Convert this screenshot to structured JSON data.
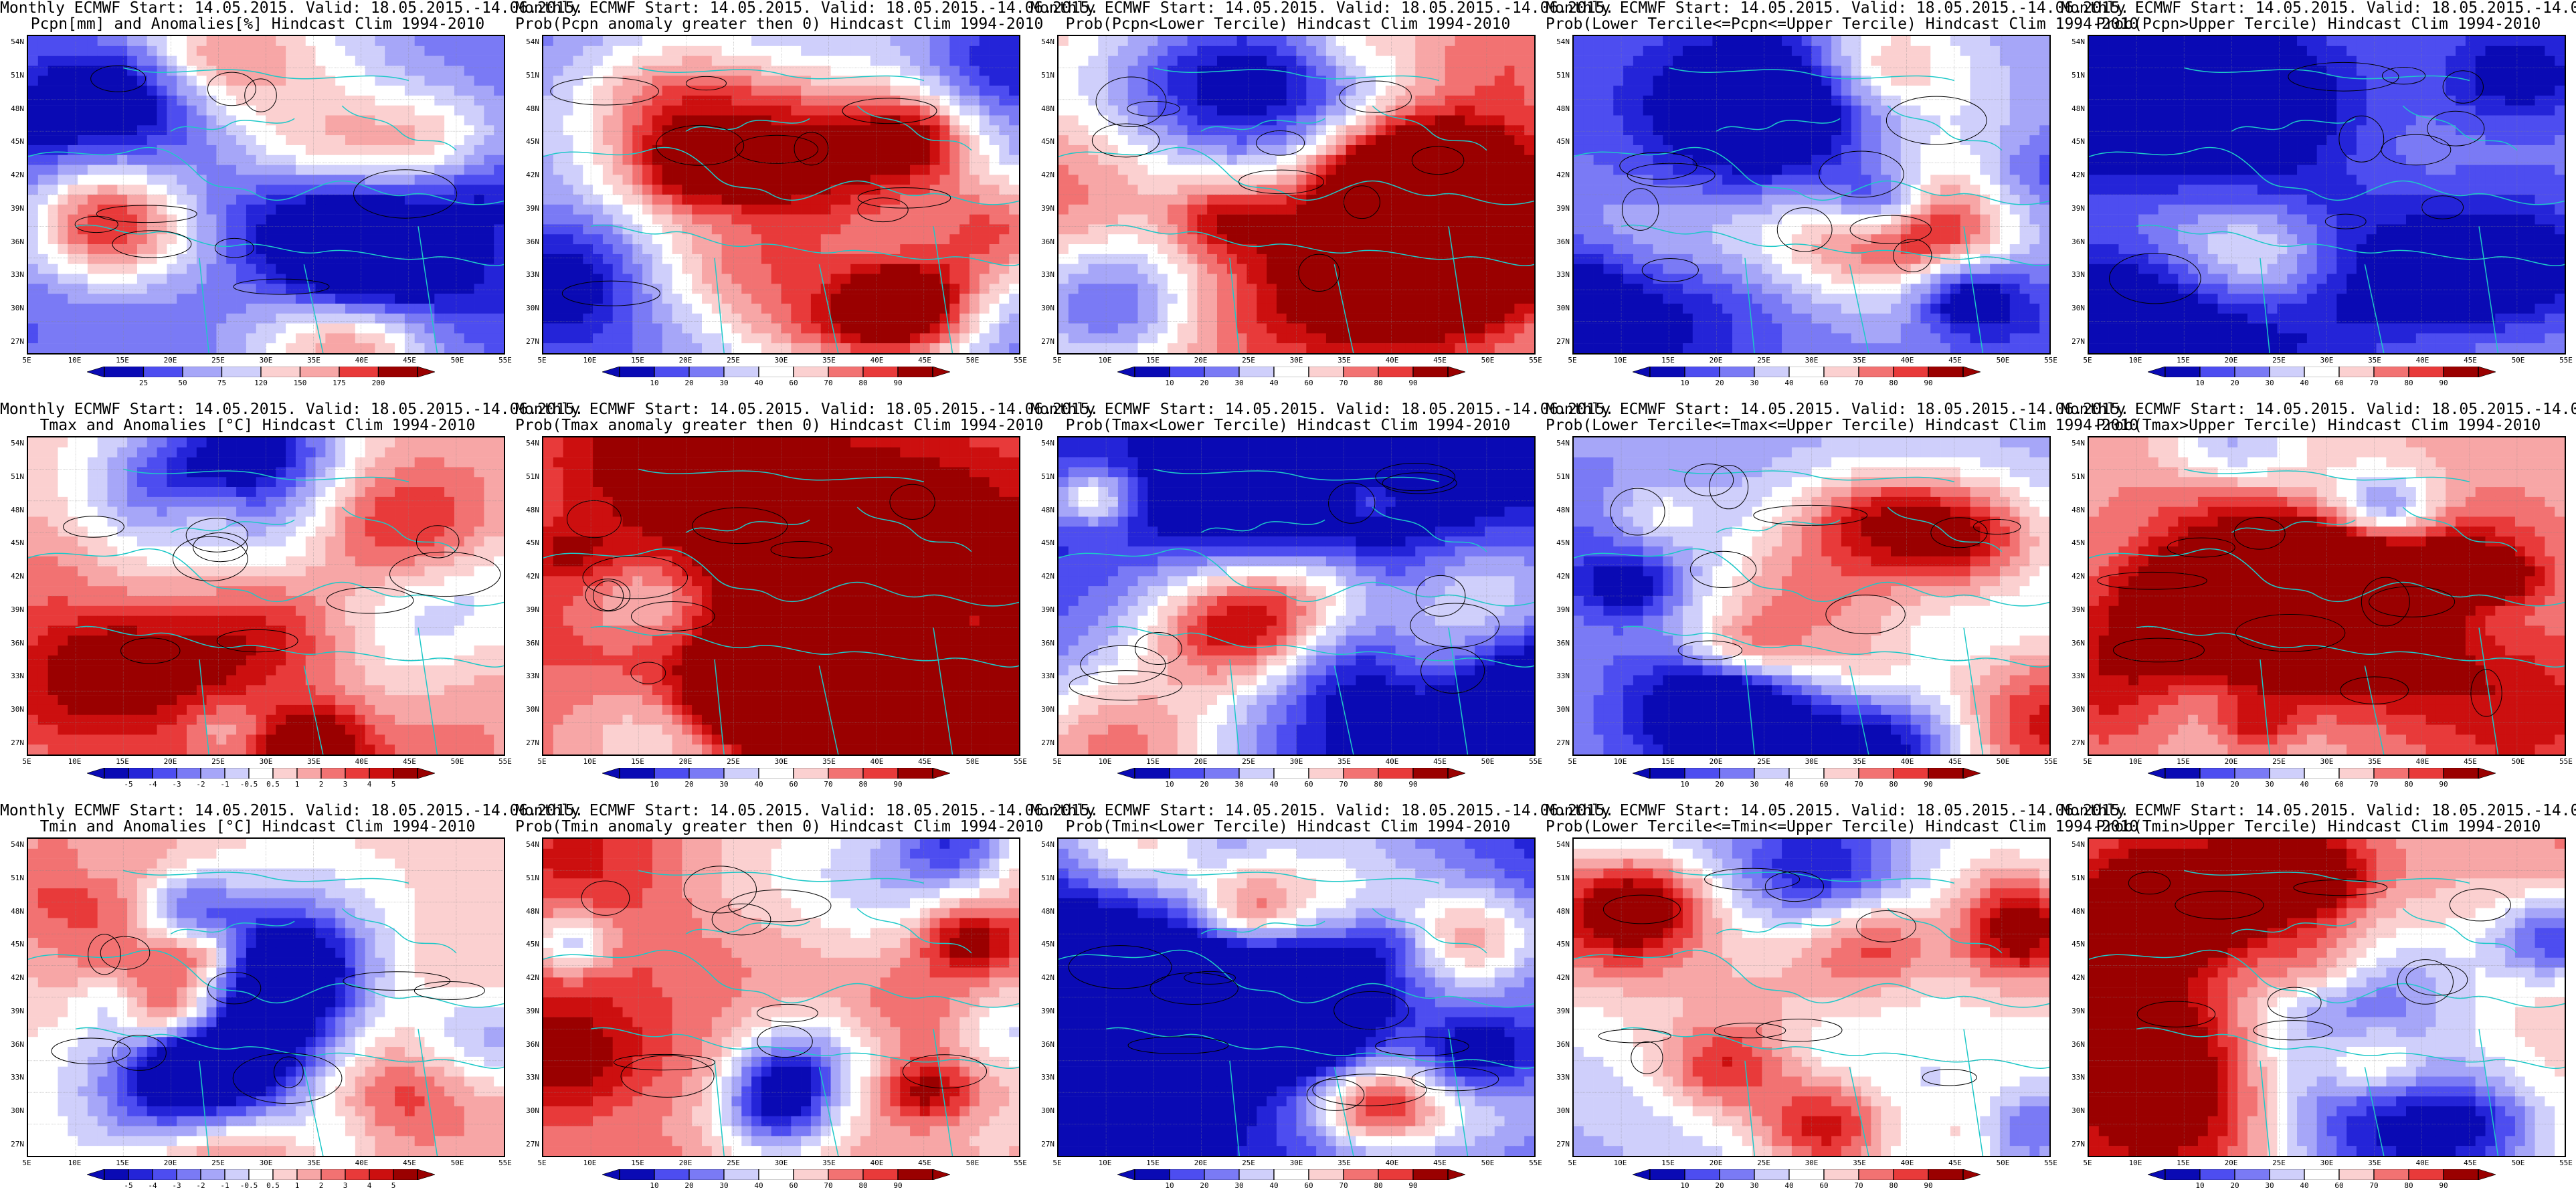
{
  "header_line": "Monthly ECMWF Start: 14.05.2015. Valid: 18.05.2015.-14.06.2015.",
  "lat_ticks": [
    "54N",
    "51N",
    "48N",
    "45N",
    "42N",
    "39N",
    "36N",
    "33N",
    "30N",
    "27N"
  ],
  "lon_ticks": [
    "5E",
    "10E",
    "15E",
    "20E",
    "25E",
    "30E",
    "35E",
    "40E",
    "45E",
    "50E",
    "55E"
  ],
  "colors": {
    "coast": "#1ec8c8",
    "contour": "#000000",
    "deep_blue": "#1010c8",
    "deep_red": "#b00000"
  },
  "panels": [
    {
      "id": "pcpn-anom",
      "title": "Pcpn[mm] and Anomalies[%] Hindcast Clim 1994-2010",
      "scheme": "blue-low",
      "cbar": [
        "25",
        "50",
        "75",
        "120",
        "150",
        "175",
        "200"
      ],
      "bias": -0.5
    },
    {
      "id": "pcpn-prob-gt0",
      "title": "Prob(Pcpn anomaly greater then 0) Hindcast Clim 1994-2010",
      "scheme": "prob",
      "cbar": [
        "10",
        "20",
        "30",
        "40",
        "60",
        "70",
        "80",
        "90"
      ],
      "bias": -0.55
    },
    {
      "id": "pcpn-prob-lower",
      "title": "Prob(Pcpn<Lower Tercile) Hindcast Clim 1994-2010",
      "scheme": "prob",
      "cbar": [
        "10",
        "20",
        "30",
        "40",
        "60",
        "70",
        "80",
        "90"
      ],
      "bias": 0.15
    },
    {
      "id": "pcpn-prob-mid",
      "title": "Prob(Lower Tercile<=Pcpn<=Upper Tercile) Hindcast Clim 1994-2010",
      "scheme": "prob",
      "cbar": [
        "10",
        "20",
        "30",
        "40",
        "60",
        "70",
        "80",
        "90"
      ],
      "bias": -0.5
    },
    {
      "id": "pcpn-prob-upper",
      "title": "Prob(Pcpn>Upper Tercile) Hindcast Clim 1994-2010",
      "scheme": "prob",
      "cbar": [
        "10",
        "20",
        "30",
        "40",
        "60",
        "70",
        "80",
        "90"
      ],
      "bias": -0.45
    },
    {
      "id": "tmax-anom",
      "title": "Tmax and Anomalies [°C] Hindcast Clim 1994-2010",
      "scheme": "anom",
      "cbar": [
        "-5",
        "-4",
        "-3",
        "-2",
        "-1",
        "-0.5",
        "0.5",
        "1",
        "2",
        "3",
        "4",
        "5"
      ],
      "bias": 0.2
    },
    {
      "id": "tmax-prob-gt0",
      "title": "Prob(Tmax anomaly greater then 0) Hindcast Clim 1994-2010",
      "scheme": "prob",
      "cbar": [
        "10",
        "20",
        "30",
        "40",
        "60",
        "70",
        "80",
        "90"
      ],
      "bias": 0.55
    },
    {
      "id": "tmax-prob-lower",
      "title": "Prob(Tmax<Lower Tercile) Hindcast Clim 1994-2010",
      "scheme": "prob",
      "cbar": [
        "10",
        "20",
        "30",
        "40",
        "60",
        "70",
        "80",
        "90"
      ],
      "bias": -0.75
    },
    {
      "id": "tmax-prob-mid",
      "title": "Prob(Lower Tercile<=Tmax<=Upper Tercile) Hindcast Clim 1994-2010",
      "scheme": "prob",
      "cbar": [
        "10",
        "20",
        "30",
        "40",
        "60",
        "70",
        "80",
        "90"
      ],
      "bias": -0.3
    },
    {
      "id": "tmax-prob-upper",
      "title": "Prob(Tmax>Upper Tercile) Hindcast Clim 1994-2010",
      "scheme": "prob",
      "cbar": [
        "10",
        "20",
        "30",
        "40",
        "60",
        "70",
        "80",
        "90"
      ],
      "bias": 0.3
    },
    {
      "id": "tmin-anom",
      "title": "Tmin and Anomalies [°C] Hindcast Clim 1994-2010",
      "scheme": "anom",
      "cbar": [
        "-5",
        "-4",
        "-3",
        "-2",
        "-1",
        "-0.5",
        "0.5",
        "1",
        "2",
        "3",
        "4",
        "5"
      ],
      "bias": 0.12
    },
    {
      "id": "tmin-prob-gt0",
      "title": "Prob(Tmin anomaly greater then 0) Hindcast Clim 1994-2010",
      "scheme": "prob",
      "cbar": [
        "10",
        "20",
        "30",
        "40",
        "60",
        "70",
        "80",
        "90"
      ],
      "bias": 0.5
    },
    {
      "id": "tmin-prob-lower",
      "title": "Prob(Tmin<Lower Tercile) Hindcast Clim 1994-2010",
      "scheme": "prob",
      "cbar": [
        "10",
        "20",
        "30",
        "40",
        "60",
        "70",
        "80",
        "90"
      ],
      "bias": -0.8
    },
    {
      "id": "tmin-prob-mid",
      "title": "Prob(Lower Tercile<=Tmin<=Upper Tercile) Hindcast Clim 1994-2010",
      "scheme": "prob",
      "cbar": [
        "10",
        "20",
        "30",
        "40",
        "60",
        "70",
        "80",
        "90"
      ],
      "bias": -0.3
    },
    {
      "id": "tmin-prob-upper",
      "title": "Prob(Tmin>Upper Tercile) Hindcast Clim 1994-2010",
      "scheme": "prob",
      "cbar": [
        "10",
        "20",
        "30",
        "40",
        "60",
        "70",
        "80",
        "90"
      ],
      "bias": 0.2
    }
  ]
}
